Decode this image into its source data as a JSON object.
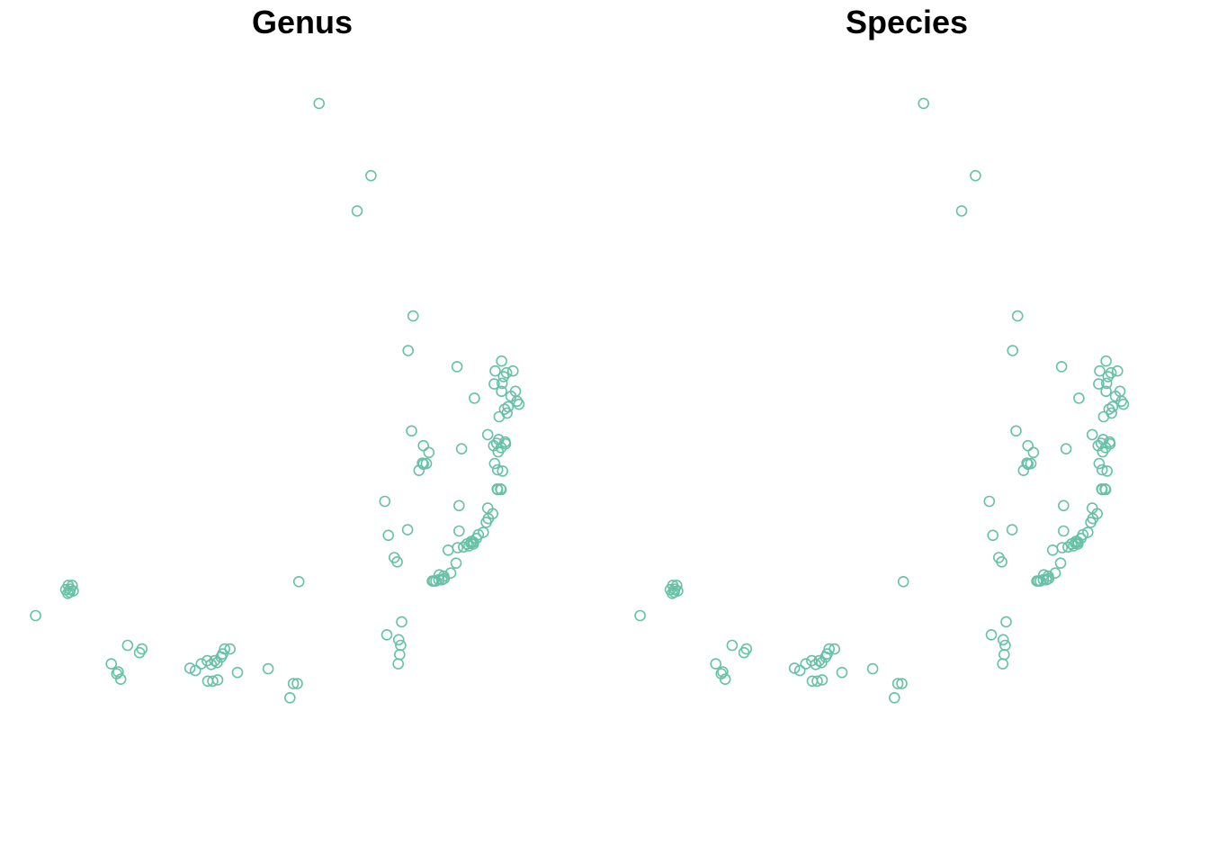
{
  "chart_data": [
    {
      "type": "scatter",
      "title": "Genus",
      "xlabel": "",
      "ylabel": "",
      "axes": "none",
      "grid": false,
      "legend": "none",
      "marker": "open-circle",
      "color": "#66c2a5",
      "xlim": [
        -5.32,
        6.9
      ],
      "ylim": [
        -4.33,
        8.78
      ],
      "points": [
        [
          1.13,
          7.98
        ],
        [
          2.18,
          6.81
        ],
        [
          1.9,
          6.24
        ],
        [
          3.03,
          4.54
        ],
        [
          2.93,
          3.98
        ],
        [
          3.92,
          3.72
        ],
        [
          4.82,
          3.81
        ],
        [
          4.69,
          3.65
        ],
        [
          4.86,
          3.56
        ],
        [
          4.92,
          3.62
        ],
        [
          5.05,
          3.65
        ],
        [
          4.67,
          3.44
        ],
        [
          4.83,
          3.45
        ],
        [
          4.82,
          3.32
        ],
        [
          5.1,
          3.32
        ],
        [
          5.01,
          3.24
        ],
        [
          4.27,
          3.21
        ],
        [
          5.13,
          3.16
        ],
        [
          4.95,
          3.07
        ],
        [
          4.88,
          3.03
        ],
        [
          5.17,
          3.11
        ],
        [
          4.93,
          2.97
        ],
        [
          4.77,
          2.91
        ],
        [
          3.0,
          2.68
        ],
        [
          4.54,
          2.62
        ],
        [
          4.76,
          2.54
        ],
        [
          4.89,
          2.5
        ],
        [
          4.72,
          2.48
        ],
        [
          4.9,
          2.47
        ],
        [
          4.81,
          2.41
        ],
        [
          4.66,
          2.44
        ],
        [
          4.75,
          2.34
        ],
        [
          3.24,
          2.44
        ],
        [
          3.35,
          2.33
        ],
        [
          4.01,
          2.39
        ],
        [
          4.68,
          2.15
        ],
        [
          4.74,
          2.05
        ],
        [
          4.84,
          2.03
        ],
        [
          3.15,
          2.04
        ],
        [
          3.3,
          2.15
        ],
        [
          3.22,
          2.16
        ],
        [
          3.24,
          2.14
        ],
        [
          4.73,
          1.74
        ],
        [
          4.74,
          1.73
        ],
        [
          4.8,
          1.74
        ],
        [
          4.81,
          1.73
        ],
        [
          2.46,
          1.54
        ],
        [
          3.96,
          1.47
        ],
        [
          4.54,
          1.43
        ],
        [
          4.64,
          1.34
        ],
        [
          4.55,
          1.26
        ],
        [
          4.51,
          1.2
        ],
        [
          2.92,
          1.08
        ],
        [
          3.96,
          1.06
        ],
        [
          4.45,
          1.04
        ],
        [
          4.35,
          1.0
        ],
        [
          4.31,
          0.94
        ],
        [
          4.25,
          0.88
        ],
        [
          4.21,
          0.89
        ],
        [
          4.25,
          0.85
        ],
        [
          4.12,
          0.85
        ],
        [
          4.16,
          0.82
        ],
        [
          4.05,
          0.8
        ],
        [
          4.2,
          0.86
        ],
        [
          3.93,
          0.79
        ],
        [
          3.74,
          0.75
        ],
        [
          2.53,
          0.99
        ],
        [
          2.65,
          0.63
        ],
        [
          2.71,
          0.56
        ],
        [
          3.9,
          0.54
        ],
        [
          3.56,
          0.35
        ],
        [
          3.49,
          0.25
        ],
        [
          3.61,
          0.27
        ],
        [
          3.42,
          0.25
        ],
        [
          3.66,
          0.29
        ],
        [
          3.79,
          0.38
        ],
        [
          3.65,
          0.33
        ],
        [
          3.55,
          0.27
        ],
        [
          3.45,
          0.25
        ],
        [
          -3.94,
          0.18
        ],
        [
          -3.99,
          0.11
        ],
        [
          -3.95,
          0.05
        ],
        [
          -3.9,
          0.12
        ],
        [
          -3.86,
          0.18
        ],
        [
          -3.84,
          0.09
        ],
        [
          -3.91,
          0.07
        ],
        [
          -4.6,
          -0.31
        ],
        [
          0.72,
          0.24
        ],
        [
          2.8,
          -0.41
        ],
        [
          2.5,
          -0.62
        ],
        [
          2.74,
          -0.7
        ],
        [
          2.78,
          -0.79
        ],
        [
          2.76,
          -0.94
        ],
        [
          2.73,
          -1.09
        ],
        [
          -2.74,
          -0.79
        ],
        [
          -2.45,
          -0.85
        ],
        [
          -2.5,
          -0.91
        ],
        [
          -0.78,
          -0.85
        ],
        [
          -0.67,
          -0.85
        ],
        [
          -0.82,
          -0.93
        ],
        [
          -0.85,
          -0.98
        ],
        [
          -3.07,
          -1.09
        ],
        [
          -2.93,
          -1.22
        ],
        [
          -2.96,
          -1.25
        ],
        [
          -2.88,
          -1.34
        ],
        [
          -0.98,
          -1.04
        ],
        [
          -1.13,
          -1.04
        ],
        [
          -1.05,
          -1.1
        ],
        [
          -1.25,
          -1.09
        ],
        [
          -1.37,
          -1.2
        ],
        [
          -1.48,
          -1.16
        ],
        [
          -0.93,
          -1.07
        ],
        [
          -0.52,
          -1.23
        ],
        [
          0.1,
          -1.17
        ],
        [
          -1.12,
          -1.37
        ],
        [
          -1.02,
          -1.37
        ],
        [
          -0.92,
          -1.35
        ],
        [
          0.61,
          -1.41
        ],
        [
          0.69,
          -1.41
        ],
        [
          0.54,
          -1.64
        ]
      ]
    },
    {
      "type": "scatter",
      "title": "Species",
      "xlabel": "",
      "ylabel": "",
      "axes": "none",
      "grid": false,
      "legend": "none",
      "marker": "open-circle",
      "color": "#66c2a5",
      "xlim": [
        -5.32,
        6.9
      ],
      "ylim": [
        -4.33,
        8.78
      ],
      "points": [
        [
          1.13,
          7.98
        ],
        [
          2.18,
          6.81
        ],
        [
          1.9,
          6.24
        ],
        [
          3.03,
          4.54
        ],
        [
          2.93,
          3.98
        ],
        [
          3.92,
          3.72
        ],
        [
          4.82,
          3.81
        ],
        [
          4.69,
          3.65
        ],
        [
          4.86,
          3.56
        ],
        [
          4.92,
          3.62
        ],
        [
          5.05,
          3.65
        ],
        [
          4.67,
          3.44
        ],
        [
          4.83,
          3.45
        ],
        [
          4.82,
          3.32
        ],
        [
          5.1,
          3.32
        ],
        [
          5.01,
          3.24
        ],
        [
          4.27,
          3.21
        ],
        [
          5.13,
          3.16
        ],
        [
          4.95,
          3.07
        ],
        [
          4.88,
          3.03
        ],
        [
          5.17,
          3.11
        ],
        [
          4.93,
          2.97
        ],
        [
          4.77,
          2.91
        ],
        [
          3.0,
          2.68
        ],
        [
          4.54,
          2.62
        ],
        [
          4.76,
          2.54
        ],
        [
          4.89,
          2.5
        ],
        [
          4.72,
          2.48
        ],
        [
          4.9,
          2.47
        ],
        [
          4.81,
          2.41
        ],
        [
          4.66,
          2.44
        ],
        [
          4.75,
          2.34
        ],
        [
          3.24,
          2.44
        ],
        [
          3.35,
          2.33
        ],
        [
          4.01,
          2.39
        ],
        [
          4.68,
          2.15
        ],
        [
          4.74,
          2.05
        ],
        [
          4.84,
          2.03
        ],
        [
          3.15,
          2.04
        ],
        [
          3.3,
          2.15
        ],
        [
          3.22,
          2.16
        ],
        [
          3.24,
          2.14
        ],
        [
          4.73,
          1.74
        ],
        [
          4.74,
          1.73
        ],
        [
          4.8,
          1.74
        ],
        [
          4.81,
          1.73
        ],
        [
          2.46,
          1.54
        ],
        [
          3.96,
          1.47
        ],
        [
          4.54,
          1.43
        ],
        [
          4.64,
          1.34
        ],
        [
          4.55,
          1.26
        ],
        [
          4.51,
          1.2
        ],
        [
          2.92,
          1.08
        ],
        [
          3.96,
          1.06
        ],
        [
          4.45,
          1.04
        ],
        [
          4.35,
          1.0
        ],
        [
          4.31,
          0.94
        ],
        [
          4.25,
          0.88
        ],
        [
          4.21,
          0.89
        ],
        [
          4.25,
          0.85
        ],
        [
          4.12,
          0.85
        ],
        [
          4.16,
          0.82
        ],
        [
          4.05,
          0.8
        ],
        [
          4.2,
          0.86
        ],
        [
          3.93,
          0.79
        ],
        [
          3.74,
          0.75
        ],
        [
          2.53,
          0.99
        ],
        [
          2.65,
          0.63
        ],
        [
          2.71,
          0.56
        ],
        [
          3.9,
          0.54
        ],
        [
          3.56,
          0.35
        ],
        [
          3.49,
          0.25
        ],
        [
          3.61,
          0.27
        ],
        [
          3.42,
          0.25
        ],
        [
          3.66,
          0.29
        ],
        [
          3.79,
          0.38
        ],
        [
          3.65,
          0.33
        ],
        [
          3.55,
          0.27
        ],
        [
          3.45,
          0.25
        ],
        [
          -3.94,
          0.18
        ],
        [
          -3.99,
          0.11
        ],
        [
          -3.95,
          0.05
        ],
        [
          -3.9,
          0.12
        ],
        [
          -3.86,
          0.18
        ],
        [
          -3.84,
          0.09
        ],
        [
          -3.91,
          0.07
        ],
        [
          -4.6,
          -0.31
        ],
        [
          0.72,
          0.24
        ],
        [
          2.8,
          -0.41
        ],
        [
          2.5,
          -0.62
        ],
        [
          2.74,
          -0.7
        ],
        [
          2.78,
          -0.79
        ],
        [
          2.76,
          -0.94
        ],
        [
          2.73,
          -1.09
        ],
        [
          -2.74,
          -0.79
        ],
        [
          -2.45,
          -0.85
        ],
        [
          -2.5,
          -0.91
        ],
        [
          -0.78,
          -0.85
        ],
        [
          -0.67,
          -0.85
        ],
        [
          -0.82,
          -0.93
        ],
        [
          -0.85,
          -0.98
        ],
        [
          -3.07,
          -1.09
        ],
        [
          -2.93,
          -1.22
        ],
        [
          -2.96,
          -1.25
        ],
        [
          -2.88,
          -1.34
        ],
        [
          -0.98,
          -1.04
        ],
        [
          -1.13,
          -1.04
        ],
        [
          -1.05,
          -1.1
        ],
        [
          -1.25,
          -1.09
        ],
        [
          -1.37,
          -1.2
        ],
        [
          -1.48,
          -1.16
        ],
        [
          -0.93,
          -1.07
        ],
        [
          -0.52,
          -1.23
        ],
        [
          0.1,
          -1.17
        ],
        [
          -1.12,
          -1.37
        ],
        [
          -1.02,
          -1.37
        ],
        [
          -0.92,
          -1.35
        ],
        [
          0.61,
          -1.41
        ],
        [
          0.69,
          -1.41
        ],
        [
          0.54,
          -1.64
        ]
      ]
    }
  ]
}
